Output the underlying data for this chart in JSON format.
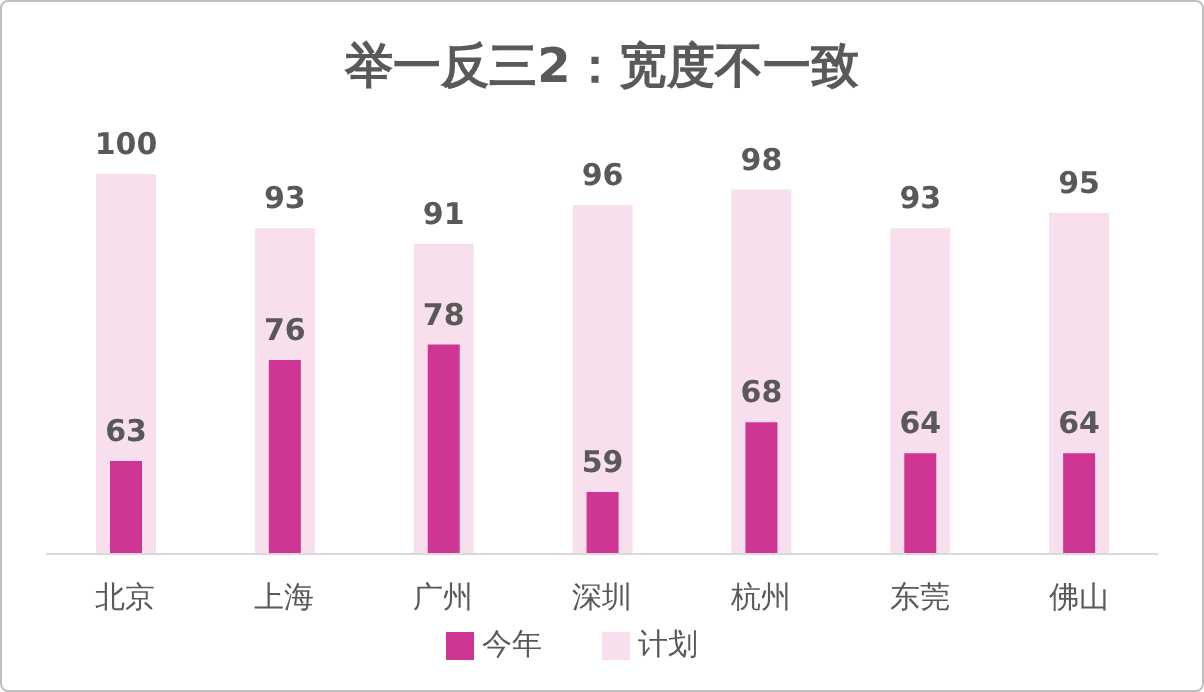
{
  "chart_data": {
    "type": "bar",
    "title": "举一反三2：宽度不一致",
    "categories": [
      "北京",
      "上海",
      "广州",
      "深圳",
      "杭州",
      "东莞",
      "佛山"
    ],
    "series": [
      {
        "name": "计划",
        "color": "#f7dfee",
        "values": [
          100,
          93,
          91,
          96,
          98,
          93,
          95
        ]
      },
      {
        "name": "今年",
        "color": "#cf3592",
        "values": [
          63,
          76,
          78,
          59,
          68,
          64,
          64
        ]
      }
    ],
    "ylim": [
      51,
      100
    ],
    "tick_labels": "x",
    "data_labels": true,
    "legend": "bottom",
    "grid": false
  }
}
